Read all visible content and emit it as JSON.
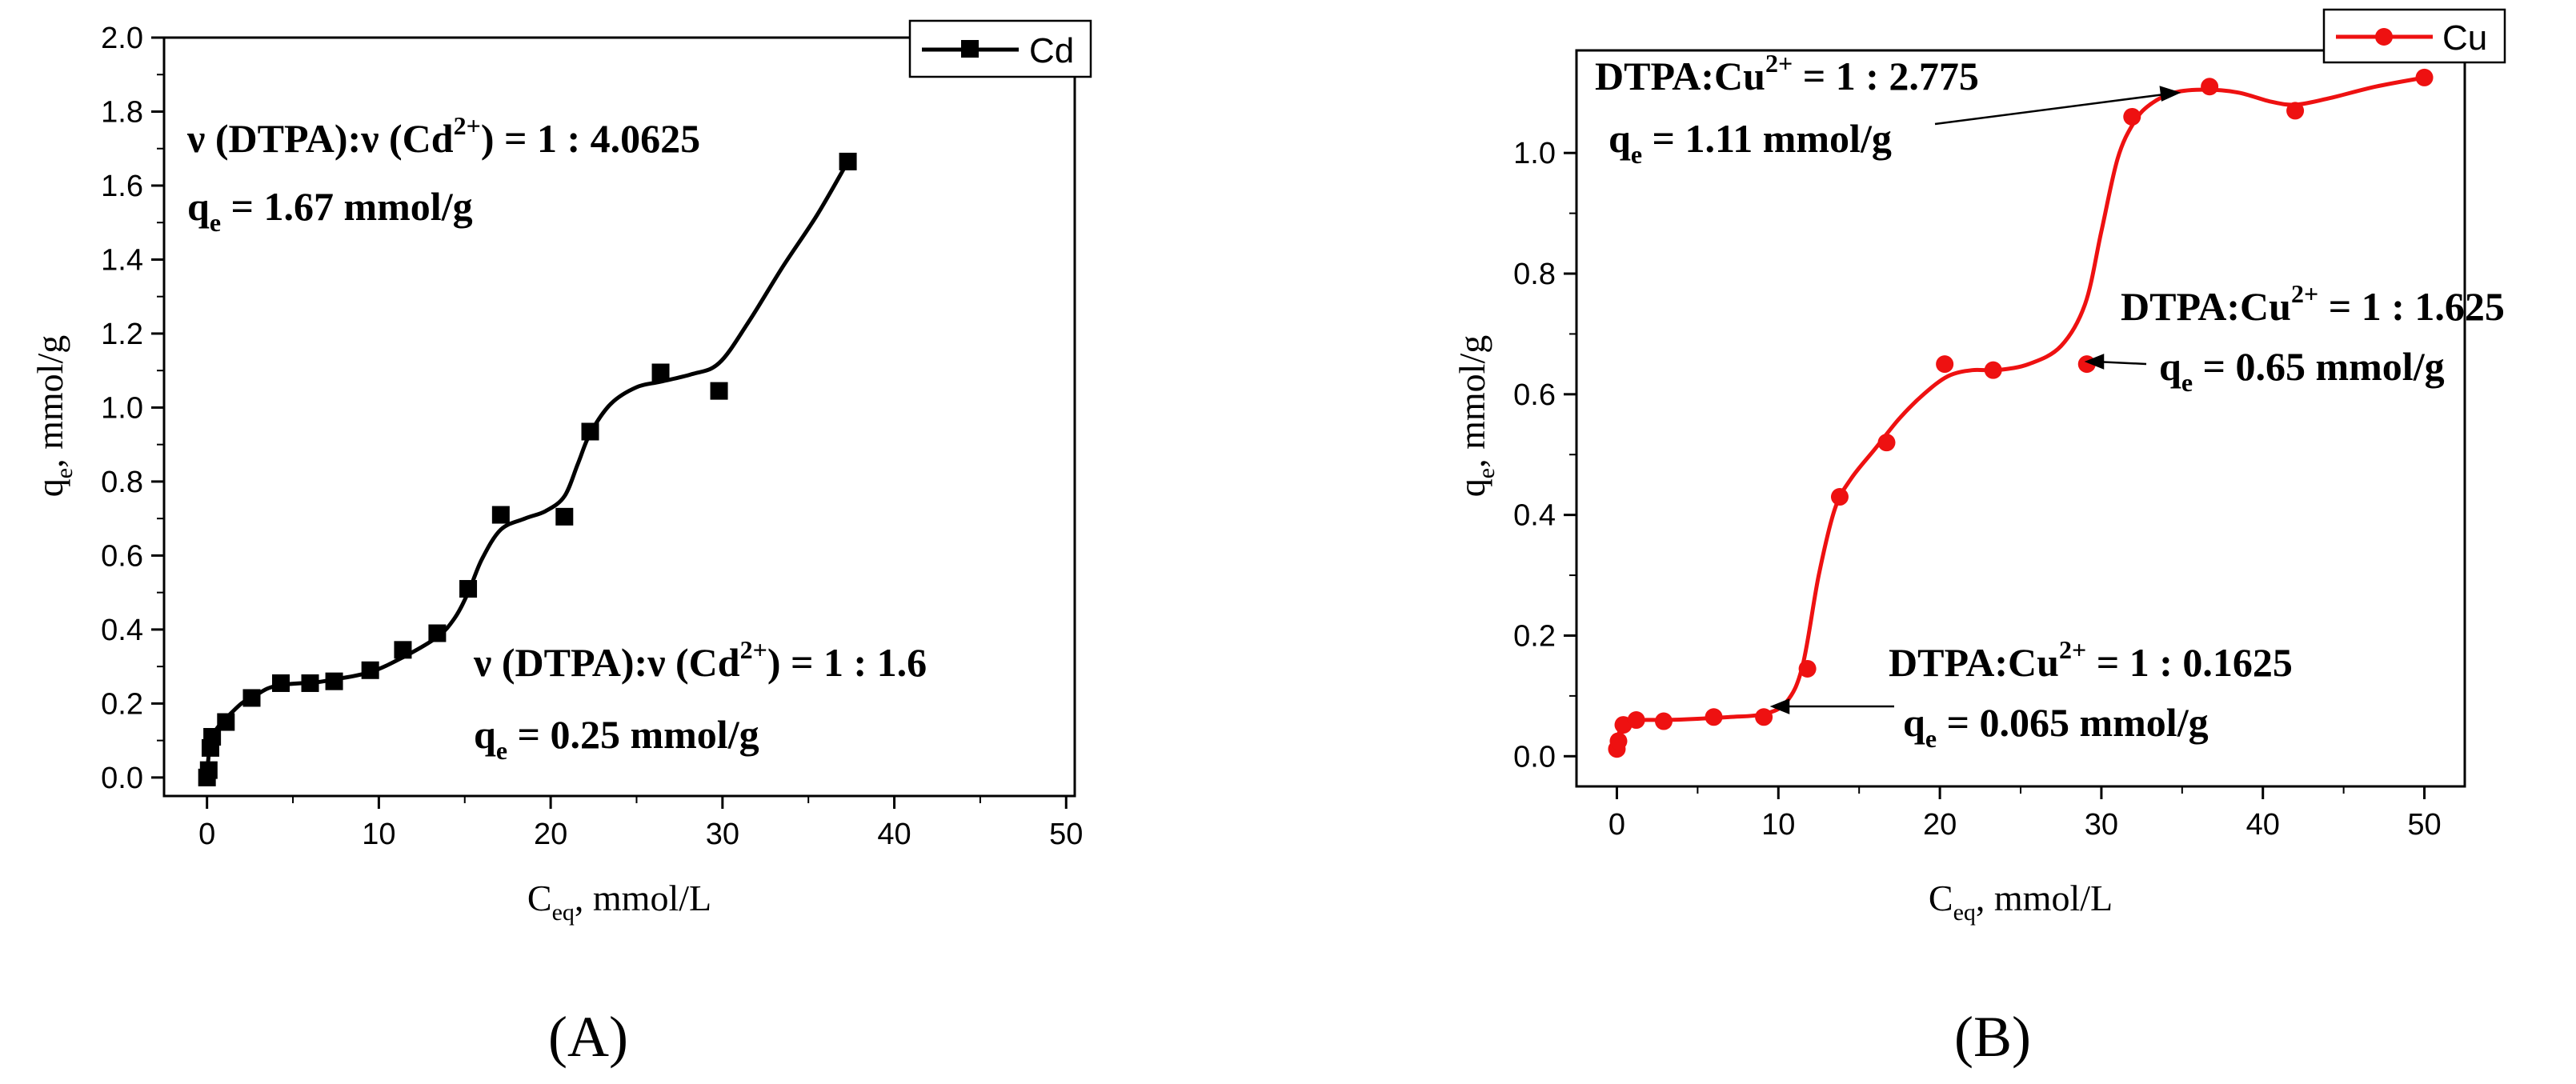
{
  "chart_data": [
    {
      "panel": "A",
      "type": "scatter",
      "series": [
        {
          "name": "Cd",
          "color": "#000000",
          "marker": "square",
          "x": [
            0.0,
            0.1,
            0.2,
            0.3,
            1.1,
            2.6,
            4.3,
            6.0,
            7.4,
            9.5,
            11.4,
            13.4,
            15.2,
            17.1,
            20.8,
            22.3,
            26.4,
            29.8,
            37.3
          ],
          "y": [
            0.0,
            0.02,
            0.08,
            0.11,
            0.15,
            0.215,
            0.255,
            0.255,
            0.26,
            0.29,
            0.345,
            0.39,
            0.51,
            0.71,
            0.705,
            0.935,
            1.095,
            1.045,
            1.665
          ],
          "curve_x": [
            0.0,
            0.1,
            0.3,
            0.7,
            1.1,
            2.0,
            2.6,
            3.5,
            4.3,
            5.5,
            6.0,
            7.4,
            9.5,
            11.4,
            13.4,
            14.4,
            15.2,
            16.0,
            17.1,
            18.5,
            19.7,
            20.8,
            21.6,
            22.3,
            23.5,
            25.0,
            26.4,
            28.2,
            29.8,
            31.5,
            33.5,
            35.5,
            37.3
          ],
          "curve_y": [
            0.0,
            0.06,
            0.11,
            0.14,
            0.16,
            0.2,
            0.215,
            0.24,
            0.25,
            0.255,
            0.255,
            0.265,
            0.285,
            0.325,
            0.38,
            0.43,
            0.5,
            0.59,
            0.67,
            0.7,
            0.72,
            0.76,
            0.85,
            0.93,
            1.01,
            1.055,
            1.07,
            1.09,
            1.12,
            1.23,
            1.38,
            1.52,
            1.665
          ]
        }
      ],
      "title": "",
      "xlabel": "C",
      "xlabel_sub": "eq",
      "xlabel_rest": ", mmol/L",
      "ylabel": "q",
      "ylabel_sub": "e",
      "ylabel_rest": ", mmol/g",
      "xlim": [
        -2.5,
        50.5
      ],
      "ylim": [
        -0.05,
        2.0
      ],
      "xticks": [
        0,
        10,
        20,
        30,
        40,
        50
      ],
      "yticks": [
        0.0,
        0.2,
        0.4,
        0.6,
        0.8,
        1.0,
        1.2,
        1.4,
        1.6,
        1.8,
        2.0
      ],
      "ytick_labels": [
        "0.0",
        "0.2",
        "0.4",
        "0.6",
        "0.8",
        "1.0",
        "1.2",
        "1.4",
        "1.6",
        "1.8",
        "2.0"
      ],
      "legend": {
        "label": "Cd",
        "position": "top-right"
      },
      "annotations": [
        {
          "line1_pre": "ν (DTPA):ν (Cd",
          "line1_sup": "2+",
          "line1_post": ") = 1 : 4.0625",
          "line2_pre": "q",
          "line2_sub": "e",
          "line2_post": " = 1.67 mmol/g"
        },
        {
          "line1_pre": "ν (DTPA):ν (Cd",
          "line1_sup": "2+",
          "line1_post": ") = 1 : 1.6",
          "line2_pre": "q",
          "line2_sub": "e",
          "line2_post": " = 0.25 mmol/g"
        }
      ],
      "panel_label": "(A)"
    },
    {
      "panel": "B",
      "type": "scatter",
      "series": [
        {
          "name": "Cu",
          "color": "#ee1111",
          "marker": "circle",
          "x": [
            0.0,
            0.1,
            0.4,
            1.2,
            2.9,
            6.0,
            9.1,
            11.8,
            13.8,
            16.7,
            20.3,
            23.3,
            29.1,
            31.9,
            36.7,
            42.0,
            50.0
          ],
          "y": [
            0.012,
            0.025,
            0.052,
            0.06,
            0.058,
            0.065,
            0.065,
            0.145,
            0.43,
            0.52,
            0.65,
            0.64,
            0.65,
            1.06,
            1.11,
            1.07,
            1.125
          ],
          "curve_x": [
            0.0,
            0.5,
            1.5,
            3.0,
            5.0,
            7.0,
            9.1,
            10.5,
            11.5,
            12.5,
            13.5,
            14.5,
            16.0,
            17.5,
            19.0,
            20.5,
            22.0,
            23.5,
            25.5,
            27.5,
            29.0,
            30.0,
            31.0,
            32.0,
            33.0,
            34.5,
            36.5,
            38.5,
            40.5,
            42.0,
            44.0,
            47.0,
            50.0
          ],
          "curve_y": [
            0.03,
            0.055,
            0.06,
            0.06,
            0.062,
            0.065,
            0.07,
            0.09,
            0.15,
            0.3,
            0.41,
            0.46,
            0.51,
            0.56,
            0.6,
            0.63,
            0.64,
            0.64,
            0.65,
            0.68,
            0.75,
            0.87,
            0.99,
            1.05,
            1.08,
            1.1,
            1.105,
            1.1,
            1.085,
            1.08,
            1.09,
            1.11,
            1.125
          ]
        }
      ],
      "title": "",
      "xlabel": "C",
      "xlabel_sub": "eq",
      "xlabel_rest": ", mmol/L",
      "ylabel": "q",
      "ylabel_sub": "e",
      "ylabel_rest": ", mmol/g",
      "xlim": [
        -2.5,
        52.5
      ],
      "ylim": [
        -0.05,
        1.17
      ],
      "xticks": [
        0,
        10,
        20,
        30,
        40,
        50
      ],
      "yticks": [
        0.0,
        0.2,
        0.4,
        0.6,
        0.8,
        1.0
      ],
      "ytick_labels": [
        "0.0",
        "0.2",
        "0.4",
        "0.6",
        "0.8",
        "1.0"
      ],
      "legend": {
        "label": "Cu",
        "position": "top-right"
      },
      "annotations": [
        {
          "line1_pre": "DTPA:Cu",
          "line1_sup": "2+",
          "line1_post": " = 1 : 2.775",
          "line2_pre": "q",
          "line2_sub": "e",
          "line2_post": " = 1.11 mmol/g"
        },
        {
          "line1_pre": "DTPA:Cu",
          "line1_sup": "2+",
          "line1_post": " = 1 : 1.625",
          "line2_pre": "q",
          "line2_sub": "e",
          "line2_post": " = 0.65 mmol/g"
        },
        {
          "line1_pre": "DTPA:Cu",
          "line1_sup": "2+",
          "line1_post": " = 1 : 0.1625",
          "line2_pre": "q",
          "line2_sub": "e",
          "line2_post": " = 0.065 mmol/g"
        }
      ],
      "panel_label": "(B)"
    }
  ]
}
